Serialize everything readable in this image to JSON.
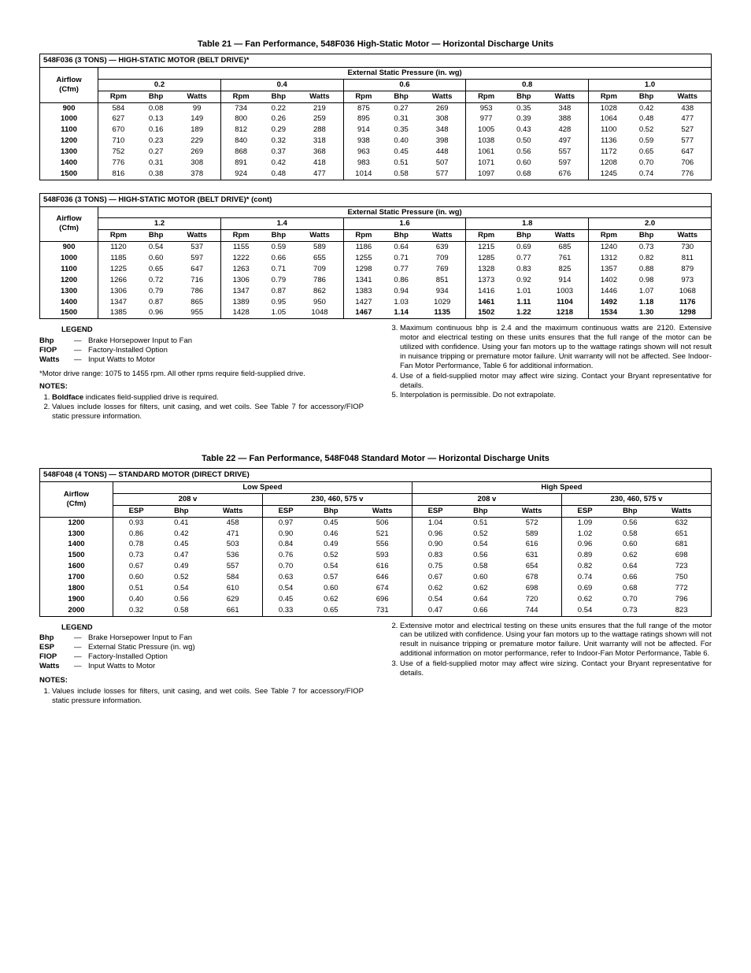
{
  "table21": {
    "title": "Table 21 — Fan Performance, 548F036 High-Static Motor — Horizontal Discharge Units",
    "caption1": "548F036 (3 TONS) — HIGH-STATIC MOTOR (BELT DRIVE)*",
    "caption2": "548F036 (3 TONS) — HIGH-STATIC MOTOR (BELT DRIVE)* (cont)",
    "esp_header": "External Static Pressure (in. wg)",
    "airflow_label1": "Airflow",
    "airflow_label2": "(Cfm)",
    "sub_cols": [
      "Rpm",
      "Bhp",
      "Watts"
    ],
    "pressures_a": [
      "0.2",
      "0.4",
      "0.6",
      "0.8",
      "1.0"
    ],
    "pressures_b": [
      "1.2",
      "1.4",
      "1.6",
      "1.8",
      "2.0"
    ],
    "airflows": [
      "900",
      "1000",
      "1100",
      "1200",
      "1300",
      "1400",
      "1500"
    ],
    "data_a": [
      [
        "584",
        "0.08",
        "99",
        "734",
        "0.22",
        "219",
        "875",
        "0.27",
        "269",
        "953",
        "0.35",
        "348",
        "1028",
        "0.42",
        "438"
      ],
      [
        "627",
        "0.13",
        "149",
        "800",
        "0.26",
        "259",
        "895",
        "0.31",
        "308",
        "977",
        "0.39",
        "388",
        "1064",
        "0.48",
        "477"
      ],
      [
        "670",
        "0.16",
        "189",
        "812",
        "0.29",
        "288",
        "914",
        "0.35",
        "348",
        "1005",
        "0.43",
        "428",
        "1100",
        "0.52",
        "527"
      ],
      [
        "710",
        "0.23",
        "229",
        "840",
        "0.32",
        "318",
        "938",
        "0.40",
        "398",
        "1038",
        "0.50",
        "497",
        "1136",
        "0.59",
        "577"
      ],
      [
        "752",
        "0.27",
        "269",
        "868",
        "0.37",
        "368",
        "963",
        "0.45",
        "448",
        "1061",
        "0.56",
        "557",
        "1172",
        "0.65",
        "647"
      ],
      [
        "776",
        "0.31",
        "308",
        "891",
        "0.42",
        "418",
        "983",
        "0.51",
        "507",
        "1071",
        "0.60",
        "597",
        "1208",
        "0.70",
        "706"
      ],
      [
        "816",
        "0.38",
        "378",
        "924",
        "0.48",
        "477",
        "1014",
        "0.58",
        "577",
        "1097",
        "0.68",
        "676",
        "1245",
        "0.74",
        "776"
      ]
    ],
    "data_b": [
      [
        "1120",
        "0.54",
        "537",
        "1155",
        "0.59",
        "589",
        "1186",
        "0.64",
        "639",
        "1215",
        "0.69",
        "685",
        "1240",
        "0.73",
        "730"
      ],
      [
        "1185",
        "0.60",
        "597",
        "1222",
        "0.66",
        "655",
        "1255",
        "0.71",
        "709",
        "1285",
        "0.77",
        "761",
        "1312",
        "0.82",
        "811"
      ],
      [
        "1225",
        "0.65",
        "647",
        "1263",
        "0.71",
        "709",
        "1298",
        "0.77",
        "769",
        "1328",
        "0.83",
        "825",
        "1357",
        "0.88",
        "879"
      ],
      [
        "1266",
        "0.72",
        "716",
        "1306",
        "0.79",
        "786",
        "1341",
        "0.86",
        "851",
        "1373",
        "0.92",
        "914",
        "1402",
        "0.98",
        "973"
      ],
      [
        "1306",
        "0.79",
        "786",
        "1347",
        "0.87",
        "862",
        "1383",
        "0.94",
        "934",
        "1416",
        "1.01",
        "1003",
        "1446",
        "1.07",
        "1068"
      ],
      [
        "1347",
        "0.87",
        "865",
        "1389",
        "0.95",
        "950",
        "1427",
        "1.03",
        "1029",
        "1461",
        "1.11",
        "1104",
        "1492",
        "1.18",
        "1176"
      ],
      [
        "1385",
        "0.96",
        "955",
        "1428",
        "1.05",
        "1048",
        "1467",
        "1.14",
        "1135",
        "1502",
        "1.22",
        "1218",
        "1534",
        "1.30",
        "1298"
      ]
    ],
    "bold_b": [
      [
        false,
        false,
        false,
        false,
        false,
        false,
        false,
        false,
        false,
        false,
        false,
        false,
        false,
        false,
        false
      ],
      [
        false,
        false,
        false,
        false,
        false,
        false,
        false,
        false,
        false,
        false,
        false,
        false,
        false,
        false,
        false
      ],
      [
        false,
        false,
        false,
        false,
        false,
        false,
        false,
        false,
        false,
        false,
        false,
        false,
        false,
        false,
        false
      ],
      [
        false,
        false,
        false,
        false,
        false,
        false,
        false,
        false,
        false,
        false,
        false,
        false,
        false,
        false,
        false
      ],
      [
        false,
        false,
        false,
        false,
        false,
        false,
        false,
        false,
        false,
        false,
        false,
        false,
        false,
        false,
        false
      ],
      [
        false,
        false,
        false,
        false,
        false,
        false,
        false,
        false,
        false,
        true,
        true,
        true,
        true,
        true,
        true
      ],
      [
        false,
        false,
        false,
        false,
        false,
        false,
        true,
        true,
        true,
        true,
        true,
        true,
        true,
        true,
        true
      ]
    ]
  },
  "legend21": {
    "title": "LEGEND",
    "items": [
      {
        "k": "Bhp",
        "v": "Brake Horsepower Input to Fan"
      },
      {
        "k": "FIOP",
        "v": "Factory-Installed Option"
      },
      {
        "k": "Watts",
        "v": "Input Watts to Motor"
      }
    ],
    "footnote": "*Motor drive range: 1075 to 1455 rpm. All other rpms require field-supplied drive.",
    "notes_label": "NOTES:",
    "notes_left_1a": "Boldface",
    "notes_left_1b": " indicates field-supplied drive is required.",
    "notes_left_2": "Values include losses for filters, unit casing, and wet coils. See Table 7 for accessory/FIOP static pressure information.",
    "notes_right_3": "Maximum continuous bhp is 2.4 and the maximum continuous watts are 2120. Extensive motor and electrical testing on these units ensures that the full range of the motor can be utilized with confidence. Using your fan motors up to the wattage ratings shown will not result in nuisance tripping or premature motor failure. Unit warranty will not be affected. See Indoor-Fan Motor Performance, Table 6 for additional information.",
    "notes_right_4": "Use of a field-supplied motor may affect wire sizing. Contact your Bryant representative for details.",
    "notes_right_5": "Interpolation is permissible. Do not extrapolate."
  },
  "table22": {
    "title": "Table 22 — Fan Performance, 548F048 Standard Motor — Horizontal Discharge Units",
    "caption": "548F048 (4 TONS) — STANDARD MOTOR (DIRECT DRIVE)",
    "airflow_label1": "Airflow",
    "airflow_label2": "(Cfm)",
    "speed_labels": [
      "Low Speed",
      "High Speed"
    ],
    "volt_labels": [
      "208 v",
      "230, 460, 575 v",
      "208 v",
      "230, 460, 575 v"
    ],
    "sub_cols": [
      "ESP",
      "Bhp",
      "Watts"
    ],
    "airflows": [
      "1200",
      "1300",
      "1400",
      "1500",
      "1600",
      "1700",
      "1800",
      "1900",
      "2000"
    ],
    "data": [
      [
        "0.93",
        "0.41",
        "458",
        "0.97",
        "0.45",
        "506",
        "1.04",
        "0.51",
        "572",
        "1.09",
        "0.56",
        "632"
      ],
      [
        "0.86",
        "0.42",
        "471",
        "0.90",
        "0.46",
        "521",
        "0.96",
        "0.52",
        "589",
        "1.02",
        "0.58",
        "651"
      ],
      [
        "0.78",
        "0.45",
        "503",
        "0.84",
        "0.49",
        "556",
        "0.90",
        "0.54",
        "616",
        "0.96",
        "0.60",
        "681"
      ],
      [
        "0.73",
        "0.47",
        "536",
        "0.76",
        "0.52",
        "593",
        "0.83",
        "0.56",
        "631",
        "0.89",
        "0.62",
        "698"
      ],
      [
        "0.67",
        "0.49",
        "557",
        "0.70",
        "0.54",
        "616",
        "0.75",
        "0.58",
        "654",
        "0.82",
        "0.64",
        "723"
      ],
      [
        "0.60",
        "0.52",
        "584",
        "0.63",
        "0.57",
        "646",
        "0.67",
        "0.60",
        "678",
        "0.74",
        "0.66",
        "750"
      ],
      [
        "0.51",
        "0.54",
        "610",
        "0.54",
        "0.60",
        "674",
        "0.62",
        "0.62",
        "698",
        "0.69",
        "0.68",
        "772"
      ],
      [
        "0.40",
        "0.56",
        "629",
        "0.45",
        "0.62",
        "696",
        "0.54",
        "0.64",
        "720",
        "0.62",
        "0.70",
        "796"
      ],
      [
        "0.32",
        "0.58",
        "661",
        "0.33",
        "0.65",
        "731",
        "0.47",
        "0.66",
        "744",
        "0.54",
        "0.73",
        "823"
      ]
    ]
  },
  "legend22": {
    "title": "LEGEND",
    "items": [
      {
        "k": "Bhp",
        "v": "Brake Horsepower Input to Fan"
      },
      {
        "k": "ESP",
        "v": "External Static Pressure (in. wg)"
      },
      {
        "k": "FIOP",
        "v": "Factory-Installed Option"
      },
      {
        "k": "Watts",
        "v": "Input Watts to Motor"
      }
    ],
    "notes_label": "NOTES:",
    "notes_left_1": "Values include losses for filters, unit casing, and wet coils. See Table 7 for accessory/FIOP static pressure information.",
    "notes_right_2": "Extensive motor and electrical testing on these units ensures that the full range of the motor can be utilized with confidence. Using your fan motors up to the wattage ratings shown will not result in nuisance tripping or premature motor failure. Unit warranty will not be affected. For additional information on motor performance, refer to Indoor-Fan Motor Performance, Table 6.",
    "notes_right_3": "Use of a field-supplied motor may affect wire sizing. Contact your Bryant representative for details."
  }
}
